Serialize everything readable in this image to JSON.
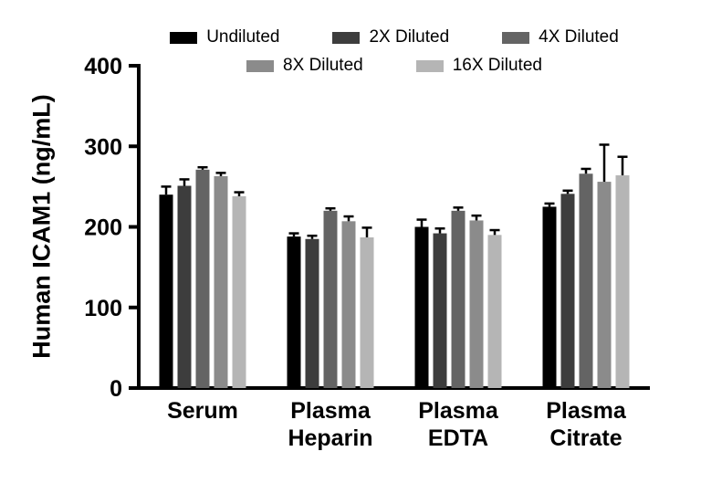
{
  "chart_data": {
    "type": "bar",
    "title": "",
    "xlabel": "",
    "ylabel": "Human ICAM1 (ng/mL)",
    "ylim": [
      0,
      400
    ],
    "yticks": [
      0,
      100,
      200,
      300,
      400
    ],
    "grid": false,
    "legend_position": "top",
    "legend_rows": [
      3,
      2
    ],
    "categories": [
      "Serum",
      "Plasma Heparin",
      "Plasma EDTA",
      "Plasma Citrate"
    ],
    "series": [
      {
        "name": "Undiluted",
        "color": "#000000",
        "values": [
          240,
          188,
          200,
          225
        ],
        "errors": [
          10,
          4,
          9,
          4
        ]
      },
      {
        "name": "2X Diluted",
        "color": "#3d3d3d",
        "values": [
          251,
          185,
          192,
          241
        ],
        "errors": [
          8,
          4,
          6,
          4
        ]
      },
      {
        "name": "4X Diluted",
        "color": "#646464",
        "values": [
          271,
          220,
          220,
          266
        ],
        "errors": [
          3,
          3,
          4,
          6
        ]
      },
      {
        "name": "8X Diluted",
        "color": "#8b8b8b",
        "values": [
          263,
          207,
          208,
          256
        ],
        "errors": [
          4,
          6,
          6,
          46
        ]
      },
      {
        "name": "16X Diluted",
        "color": "#b5b5b5",
        "values": [
          238,
          187,
          190,
          264
        ],
        "errors": [
          5,
          12,
          6,
          23
        ]
      }
    ],
    "axis_color": "#000000",
    "error_bar_color": "#000000"
  }
}
